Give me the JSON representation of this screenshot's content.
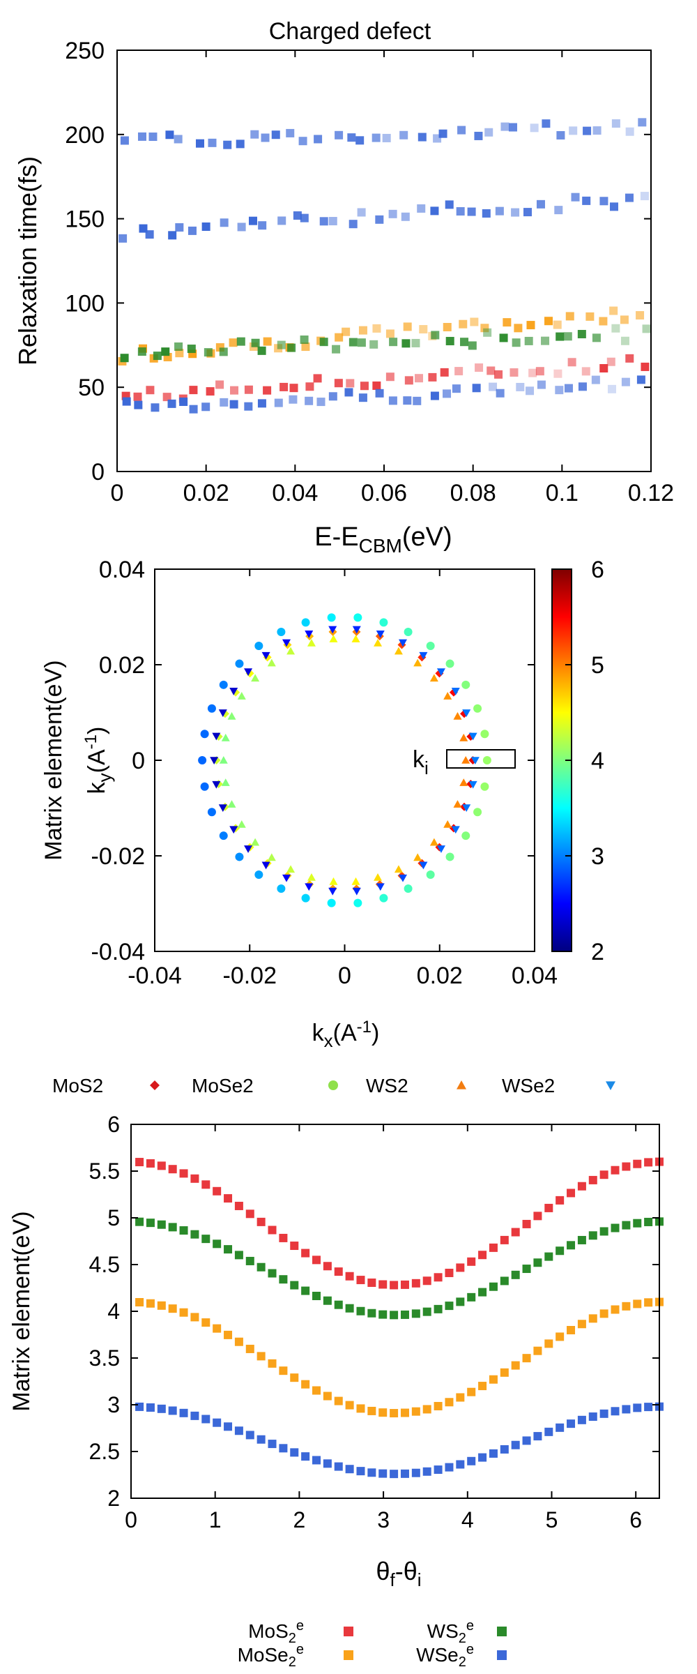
{
  "panel_top": {
    "title": "Charged defect",
    "ylabel": "Relaxation time(fs)",
    "xlabel_main": "E-E",
    "xlabel_sub": "CBM",
    "xlabel_unit": "(eV)",
    "x_ticks": [
      "0",
      "0.02",
      "0.04",
      "0.06",
      "0.08",
      "0.1",
      "0.12"
    ],
    "y_ticks": [
      "0",
      "50",
      "100",
      "150",
      "200",
      "250"
    ]
  },
  "panel_mid": {
    "ylabel_outer": "Matrix element(eV)",
    "ylabel_k": "k",
    "ylabel_k_sub": "y",
    "ylabel_k_unit": "(A",
    "ylabel_k_exp": "-1",
    "ylabel_k_close": ")",
    "xlabel_k": "k",
    "xlabel_k_sub": "x",
    "xlabel_k_unit": "(A",
    "xlabel_k_exp": "-1",
    "xlabel_k_close": ")",
    "ki_main": "k",
    "ki_sub": "i",
    "x_ticks": [
      "-0.04",
      "-0.02",
      "0",
      "0.02",
      "0.04"
    ],
    "y_ticks": [
      "-0.04",
      "-0.02",
      "0",
      "0.02",
      "0.04"
    ],
    "cb_ticks": [
      "2",
      "3",
      "4",
      "5",
      "6"
    ],
    "legend": [
      "MoS2",
      "MoSe2",
      "WS2",
      "WSe2"
    ]
  },
  "panel_bot": {
    "ylabel": "Matrix element(eV)",
    "xlabel_main": "θ",
    "xlabel_sub1": "f",
    "xlabel_mid": "-θ",
    "xlabel_sub2": "i",
    "x_ticks": [
      "0",
      "1",
      "2",
      "3",
      "4",
      "5",
      "6"
    ],
    "y_ticks": [
      "2",
      "2.5",
      "3",
      "3.5",
      "4",
      "4.5",
      "5",
      "5.5",
      "6"
    ],
    "legend": [
      {
        "base": "MoS",
        "sub": "2",
        "sup": "e"
      },
      {
        "base": "WS",
        "sub": "2",
        "sup": "e"
      },
      {
        "base": "MoSe",
        "sub": "2",
        "sup": "e"
      },
      {
        "base": "WSe",
        "sub": "2",
        "sup": "e"
      }
    ]
  },
  "colors": {
    "MoS2": "#e8383d",
    "MoSe2": "#f9a21a",
    "WS2": "#2a8a2a",
    "WSe2": "#3b68d8"
  },
  "chart_data": [
    {
      "type": "scatter",
      "title": "Charged defect",
      "xlabel": "E-E_CBM(eV)",
      "ylabel": "Relaxation time(fs)",
      "xlim": [
        0,
        0.12
      ],
      "ylim": [
        0,
        250
      ],
      "grid": false,
      "legend": "none",
      "series": [
        {
          "key": "MoS2",
          "trend": {
            "x": [
              0.0,
              0.12
            ],
            "y": [
              44,
              65
            ]
          }
        },
        {
          "key": "MoSe2",
          "trend": {
            "x": [
              0.0,
              0.12
            ],
            "y": [
              69,
              94
            ]
          }
        },
        {
          "key": "WS2",
          "trend": {
            "x": [
              0.0,
              0.12
            ],
            "y": [
              71,
              82
            ]
          }
        },
        {
          "key": "WSe2",
          "trend": {
            "x": [
              0.0,
              0.12
            ],
            "y": [
              38,
              52
            ]
          }
        },
        {
          "key": "WSe2",
          "trend": {
            "x": [
              0.0,
              0.12
            ],
            "y": [
              142,
              162
            ]
          }
        },
        {
          "key": "WSe2",
          "trend": {
            "x": [
              0.0,
              0.12
            ],
            "y": [
              195,
              205
            ]
          }
        }
      ]
    },
    {
      "type": "scatter",
      "xlabel": "k_x(A^-1)",
      "ylabel": "k_y(A^-1)",
      "xlim": [
        -0.04,
        0.04
      ],
      "ylim": [
        -0.04,
        0.04
      ],
      "colorbar": {
        "label": "Matrix element(eV)",
        "range": [
          2,
          6
        ]
      },
      "ki_point": [
        0.028,
        0.0
      ],
      "series": [
        {
          "name": "MoS2",
          "marker": "diamond",
          "radius": 0.027,
          "values_range": [
            4.3,
            5.6
          ]
        },
        {
          "name": "MoSe2",
          "marker": "circle",
          "radius": 0.03,
          "values_range": [
            2.9,
            4.1
          ]
        },
        {
          "name": "WS2",
          "marker": "triangle-up",
          "radius": 0.0255,
          "values_range": [
            4.0,
            5.0
          ]
        },
        {
          "name": "WSe2",
          "marker": "triangle-down",
          "radius": 0.0275,
          "values_range": [
            2.26,
            2.98
          ]
        }
      ]
    },
    {
      "type": "scatter",
      "xlabel": "θ_f-θ_i",
      "ylabel": "Matrix element(eV)",
      "xlim": [
        0,
        6.28
      ],
      "ylim": [
        2,
        6
      ],
      "grid": false,
      "legend": "bottom",
      "series": [
        {
          "key": "MoS2",
          "max": 5.6,
          "min": 4.28
        },
        {
          "key": "WS2",
          "max": 4.96,
          "min": 3.96
        },
        {
          "key": "MoSe2",
          "max": 4.1,
          "min": 2.91
        },
        {
          "key": "WSe2",
          "max": 2.98,
          "min": 2.26
        }
      ]
    }
  ]
}
